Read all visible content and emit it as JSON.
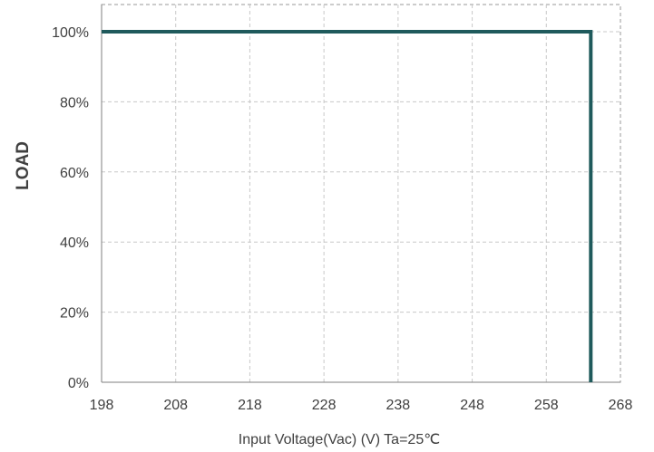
{
  "chart_data": {
    "type": "line",
    "title": "",
    "xlabel": "Input Voltage(Vac) (V) Ta=25℃",
    "ylabel": "LOAD",
    "xlim": [
      198,
      268
    ],
    "ylim": [
      0,
      100
    ],
    "x_ticks": [
      198,
      208,
      218,
      228,
      238,
      248,
      258,
      268
    ],
    "x_tick_labels": [
      "198",
      "208",
      "218",
      "228",
      "238",
      "248",
      "258",
      "268"
    ],
    "y_ticks": [
      0,
      20,
      40,
      60,
      80,
      100
    ],
    "y_tick_labels": [
      "0%",
      "20%",
      "40%",
      "60%",
      "80%",
      "100%"
    ],
    "grid": true,
    "legend": "none",
    "series": [
      {
        "color": "#1f5a5c",
        "points": [
          {
            "x": 198,
            "y": 100
          },
          {
            "x": 264,
            "y": 100
          },
          {
            "x": 264,
            "y": 0
          }
        ]
      }
    ]
  }
}
